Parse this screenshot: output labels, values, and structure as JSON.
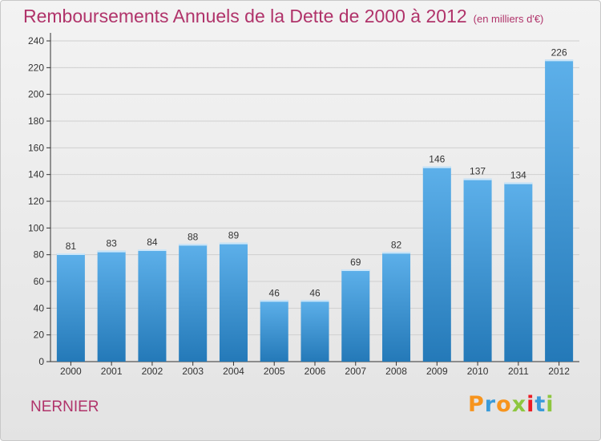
{
  "title": "Remboursements Annuels de la Dette de 2000 à 2012",
  "unit_note": "(en milliers d'€)",
  "commune": "NERNIER",
  "logo": {
    "text": "Proxiti",
    "colors": [
      "#f7941d",
      "#3a9bd9",
      "#f7941d",
      "#8dc63f",
      "#ec1c24",
      "#3a9bd9",
      "#8dc63f"
    ]
  },
  "colors": {
    "title": "#b0336a",
    "bar_light": "#5db0ea",
    "bar_dark": "#2479b8",
    "axis": "#333333",
    "grid": "#cfcfcf"
  },
  "chart_data": {
    "type": "bar",
    "categories": [
      "2000",
      "2001",
      "2002",
      "2003",
      "2004",
      "2005",
      "2006",
      "2007",
      "2008",
      "2009",
      "2010",
      "2011",
      "2012"
    ],
    "values": [
      81,
      83,
      84,
      88,
      89,
      46,
      46,
      69,
      82,
      146,
      137,
      134,
      226
    ],
    "ylim": [
      0,
      240
    ],
    "yticks": [
      0,
      20,
      40,
      60,
      80,
      100,
      120,
      140,
      160,
      180,
      200,
      220,
      240
    ],
    "grid": true,
    "data_labels": true
  }
}
